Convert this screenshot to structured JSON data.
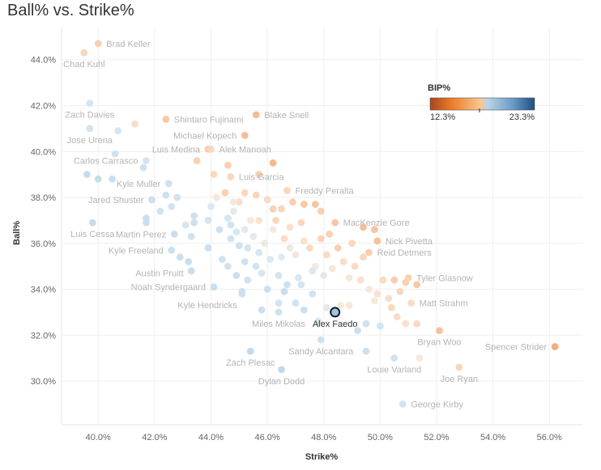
{
  "title": "Ball% vs. Strike%",
  "chart_data": {
    "type": "scatter",
    "title": "Ball% vs. Strike%",
    "xlabel": "Strike%",
    "ylabel": "Ball%",
    "xlim": [
      38.7,
      57.2
    ],
    "ylim": [
      28.1,
      45.4
    ],
    "xticks": [
      40,
      42,
      44,
      46,
      48,
      50,
      52,
      54,
      56
    ],
    "yticks": [
      30,
      32,
      34,
      36,
      38,
      40,
      42,
      44
    ],
    "xtick_labels": [
      "40.0%",
      "42.0%",
      "44.0%",
      "46.0%",
      "48.0%",
      "50.0%",
      "52.0%",
      "54.0%",
      "56.0%"
    ],
    "ytick_labels": [
      "30.0%",
      "32.0%",
      "34.0%",
      "36.0%",
      "38.0%",
      "40.0%",
      "42.0%",
      "44.0%"
    ],
    "grid": true,
    "legend": {
      "title": "BIP%",
      "min_label": "12.3%",
      "max_label": "23.3%",
      "min": 12.3,
      "max": 23.3,
      "mid": 17.5,
      "colors": [
        "#a8461e",
        "#eb7a28",
        "#fbc68d",
        "#b9d4e6",
        "#6f9dc9",
        "#1c4f80"
      ],
      "placement": "top-right"
    },
    "highlight_color": "#9ec6e2",
    "points": [
      {
        "name": "Brad Keller",
        "x": 40.0,
        "y": 44.7,
        "bip": 16.5,
        "label": "right"
      },
      {
        "name": "Chad Kuhl",
        "x": 39.5,
        "y": 44.3,
        "bip": 16.8,
        "label": "below"
      },
      {
        "name": "Zach Davies",
        "x": 39.7,
        "y": 42.1,
        "bip": 20.0,
        "label": "below"
      },
      {
        "name": "Shintaro Fujinami",
        "x": 42.4,
        "y": 41.4,
        "bip": 16.2,
        "label": "right"
      },
      {
        "name": "Blake Snell",
        "x": 45.6,
        "y": 41.6,
        "bip": 15.5,
        "label": "right"
      },
      {
        "name": "Michael Kopech",
        "x": 45.2,
        "y": 40.7,
        "bip": 15.6,
        "label": "left"
      },
      {
        "name": "Jose Urena",
        "x": 39.7,
        "y": 41.0,
        "bip": 20.0,
        "label": "below"
      },
      {
        "name": "Luis Medina",
        "x": 43.9,
        "y": 40.1,
        "bip": 16.4,
        "label": "left"
      },
      {
        "name": "Alek Manoah",
        "x": 44.0,
        "y": 40.1,
        "bip": 16.9,
        "label": "right"
      },
      {
        "name": "Carlos Carrasco",
        "x": 41.7,
        "y": 39.6,
        "bip": 19.9,
        "label": "left"
      },
      {
        "name": "Luis Garcia",
        "x": 44.7,
        "y": 38.9,
        "bip": 16.8,
        "label": "right"
      },
      {
        "name": "Kyle Muller",
        "x": 42.5,
        "y": 38.6,
        "bip": 20.3,
        "label": "left"
      },
      {
        "name": "Freddy Peralta",
        "x": 46.7,
        "y": 38.3,
        "bip": 16.8,
        "label": "right"
      },
      {
        "name": "Jared Shuster",
        "x": 41.9,
        "y": 37.9,
        "bip": 20.6,
        "label": "left"
      },
      {
        "name": "MacKenzie Gore",
        "x": 48.4,
        "y": 36.9,
        "bip": 16.0,
        "label": "right"
      },
      {
        "name": "Luis Cessa",
        "x": 39.8,
        "y": 36.9,
        "bip": 21.0,
        "label": "below"
      },
      {
        "name": "Martin Perez",
        "x": 42.7,
        "y": 36.4,
        "bip": 20.7,
        "label": "left"
      },
      {
        "name": "Nick Pivetta",
        "x": 49.9,
        "y": 36.1,
        "bip": 15.8,
        "label": "right"
      },
      {
        "name": "Kyle Freeland",
        "x": 42.6,
        "y": 35.7,
        "bip": 20.6,
        "label": "left"
      },
      {
        "name": "Reid Detmers",
        "x": 49.6,
        "y": 35.6,
        "bip": 16.4,
        "label": "right"
      },
      {
        "name": "Austin Pruitt",
        "x": 43.2,
        "y": 35.2,
        "bip": 20.8,
        "label": "below-left"
      },
      {
        "name": "Tyler Glasnow",
        "x": 51.0,
        "y": 34.5,
        "bip": 16.6,
        "label": "right"
      },
      {
        "name": "Noah Syndergaard",
        "x": 44.1,
        "y": 34.1,
        "bip": 20.7,
        "label": "left"
      },
      {
        "name": "Matt Strahm",
        "x": 51.1,
        "y": 33.4,
        "bip": 17.0,
        "label": "right"
      },
      {
        "name": "Kyle Hendricks",
        "x": 45.1,
        "y": 33.8,
        "bip": 20.4,
        "label": "below-left"
      },
      {
        "name": "Alex Faedo",
        "x": 48.4,
        "y": 33.0,
        "bip": 21.5,
        "label": "below",
        "highlight": true
      },
      {
        "name": "Miles Mikolas",
        "x": 46.4,
        "y": 33.0,
        "bip": 20.3,
        "label": "below"
      },
      {
        "name": "Bryan Woo",
        "x": 52.1,
        "y": 32.2,
        "bip": 15.8,
        "label": "below"
      },
      {
        "name": "Spencer Strider",
        "x": 56.2,
        "y": 31.5,
        "bip": 14.8,
        "label": "left"
      },
      {
        "name": "Sandy Alcantara",
        "x": 47.9,
        "y": 31.8,
        "bip": 20.3,
        "label": "below"
      },
      {
        "name": "Zach Plesac",
        "x": 45.4,
        "y": 31.3,
        "bip": 21.2,
        "label": "below"
      },
      {
        "name": "Louie Varland",
        "x": 50.5,
        "y": 31.0,
        "bip": 20.2,
        "label": "below"
      },
      {
        "name": "Joe Ryan",
        "x": 52.8,
        "y": 30.6,
        "bip": 16.8,
        "label": "below"
      },
      {
        "name": "Dylan Dodd",
        "x": 46.5,
        "y": 30.5,
        "bip": 21.4,
        "label": "below"
      },
      {
        "name": "George Kirby",
        "x": 50.8,
        "y": 29.0,
        "bip": 20.0,
        "label": "right"
      },
      {
        "x": 41.3,
        "y": 41.2,
        "bip": 17.2
      },
      {
        "x": 40.7,
        "y": 40.9,
        "bip": 19.8
      },
      {
        "x": 40.6,
        "y": 39.9,
        "bip": 20.2
      },
      {
        "x": 41.6,
        "y": 39.3,
        "bip": 20.4
      },
      {
        "x": 39.6,
        "y": 39.0,
        "bip": 21.0
      },
      {
        "x": 40.0,
        "y": 38.8,
        "bip": 20.9
      },
      {
        "x": 40.5,
        "y": 38.8,
        "bip": 20.7
      },
      {
        "x": 41.7,
        "y": 37.1,
        "bip": 20.5
      },
      {
        "x": 41.7,
        "y": 36.9,
        "bip": 20.7
      },
      {
        "x": 42.4,
        "y": 38.1,
        "bip": 20.5
      },
      {
        "x": 42.2,
        "y": 37.4,
        "bip": 20.2
      },
      {
        "x": 42.8,
        "y": 38.0,
        "bip": 20.1
      },
      {
        "x": 42.6,
        "y": 37.6,
        "bip": 20.0
      },
      {
        "x": 43.4,
        "y": 37.2,
        "bip": 20.3
      },
      {
        "x": 43.4,
        "y": 36.9,
        "bip": 20.5
      },
      {
        "x": 43.1,
        "y": 36.8,
        "bip": 19.8
      },
      {
        "x": 43.3,
        "y": 36.3,
        "bip": 20.1
      },
      {
        "x": 42.9,
        "y": 35.4,
        "bip": 20.4
      },
      {
        "x": 43.5,
        "y": 39.6,
        "bip": 16.6
      },
      {
        "x": 44.1,
        "y": 39.0,
        "bip": 16.9
      },
      {
        "x": 44.6,
        "y": 39.4,
        "bip": 16.5
      },
      {
        "x": 44.2,
        "y": 38.0,
        "bip": 17.6
      },
      {
        "x": 44.0,
        "y": 37.6,
        "bip": 19.4
      },
      {
        "x": 43.9,
        "y": 37.0,
        "bip": 19.9
      },
      {
        "x": 44.3,
        "y": 36.6,
        "bip": 20.4
      },
      {
        "x": 44.6,
        "y": 37.1,
        "bip": 19.8
      },
      {
        "x": 44.8,
        "y": 37.4,
        "bip": 18.7
      },
      {
        "x": 45.0,
        "y": 37.8,
        "bip": 17.3
      },
      {
        "x": 45.4,
        "y": 37.0,
        "bip": 17.8
      },
      {
        "x": 45.2,
        "y": 36.6,
        "bip": 19.3
      },
      {
        "x": 44.9,
        "y": 36.5,
        "bip": 19.6
      },
      {
        "x": 44.7,
        "y": 36.2,
        "bip": 20.1
      },
      {
        "x": 45.0,
        "y": 35.9,
        "bip": 20.3
      },
      {
        "x": 45.3,
        "y": 35.8,
        "bip": 19.8
      },
      {
        "x": 45.5,
        "y": 36.3,
        "bip": 18.9
      },
      {
        "x": 45.7,
        "y": 35.6,
        "bip": 19.8
      },
      {
        "x": 45.9,
        "y": 36.0,
        "bip": 18.4
      },
      {
        "x": 46.1,
        "y": 35.3,
        "bip": 19.5
      },
      {
        "x": 45.6,
        "y": 35.0,
        "bip": 20.0
      },
      {
        "x": 45.2,
        "y": 35.2,
        "bip": 20.3
      },
      {
        "x": 44.9,
        "y": 34.6,
        "bip": 20.6
      },
      {
        "x": 44.6,
        "y": 35.0,
        "bip": 20.1
      },
      {
        "x": 45.3,
        "y": 34.4,
        "bip": 20.2
      },
      {
        "x": 45.8,
        "y": 34.7,
        "bip": 19.7
      },
      {
        "x": 46.0,
        "y": 34.0,
        "bip": 20.4
      },
      {
        "x": 45.1,
        "y": 33.9,
        "bip": 20.5
      },
      {
        "x": 46.4,
        "y": 34.6,
        "bip": 19.9
      },
      {
        "x": 46.6,
        "y": 33.9,
        "bip": 20.8
      },
      {
        "x": 47.0,
        "y": 33.4,
        "bip": 20.1
      },
      {
        "x": 46.7,
        "y": 34.2,
        "bip": 20.3
      },
      {
        "x": 45.8,
        "y": 33.1,
        "bip": 20.6
      },
      {
        "x": 46.4,
        "y": 33.4,
        "bip": 20.0
      },
      {
        "x": 47.1,
        "y": 34.5,
        "bip": 19.6
      },
      {
        "x": 47.2,
        "y": 34.2,
        "bip": 20.0
      },
      {
        "x": 47.6,
        "y": 33.8,
        "bip": 20.1
      },
      {
        "x": 47.3,
        "y": 33.1,
        "bip": 20.6
      },
      {
        "x": 47.8,
        "y": 32.6,
        "bip": 19.9
      },
      {
        "x": 46.2,
        "y": 36.6,
        "bip": 17.8
      },
      {
        "x": 46.6,
        "y": 36.2,
        "bip": 17.2
      },
      {
        "x": 46.8,
        "y": 35.8,
        "bip": 18.4
      },
      {
        "x": 46.5,
        "y": 35.4,
        "bip": 19.2
      },
      {
        "x": 47.0,
        "y": 35.5,
        "bip": 18.2
      },
      {
        "x": 47.3,
        "y": 36.1,
        "bip": 17.4
      },
      {
        "x": 47.5,
        "y": 35.8,
        "bip": 17.0
      },
      {
        "x": 47.7,
        "y": 35.0,
        "bip": 18.0
      },
      {
        "x": 47.9,
        "y": 36.2,
        "bip": 16.7
      },
      {
        "x": 48.1,
        "y": 35.5,
        "bip": 17.0
      },
      {
        "x": 48.3,
        "y": 34.9,
        "bip": 17.6
      },
      {
        "x": 48.0,
        "y": 34.6,
        "bip": 18.9
      },
      {
        "x": 47.6,
        "y": 34.8,
        "bip": 19.4
      },
      {
        "x": 48.5,
        "y": 35.8,
        "bip": 16.5
      },
      {
        "x": 48.7,
        "y": 35.2,
        "bip": 17.1
      },
      {
        "x": 48.9,
        "y": 34.5,
        "bip": 17.8
      },
      {
        "x": 49.1,
        "y": 35.0,
        "bip": 17.0
      },
      {
        "x": 49.3,
        "y": 34.4,
        "bip": 17.3
      },
      {
        "x": 49.4,
        "y": 35.4,
        "bip": 16.8
      },
      {
        "x": 49.6,
        "y": 34.0,
        "bip": 17.6
      },
      {
        "x": 49.9,
        "y": 33.8,
        "bip": 17.4
      },
      {
        "x": 50.1,
        "y": 34.4,
        "bip": 17.0
      },
      {
        "x": 50.3,
        "y": 33.6,
        "bip": 17.2
      },
      {
        "x": 49.8,
        "y": 33.5,
        "bip": 17.8
      },
      {
        "x": 50.5,
        "y": 34.4,
        "bip": 16.4
      },
      {
        "x": 50.7,
        "y": 33.9,
        "bip": 16.8
      },
      {
        "x": 50.4,
        "y": 33.2,
        "bip": 16.9
      },
      {
        "x": 50.6,
        "y": 32.8,
        "bip": 17.2
      },
      {
        "x": 50.9,
        "y": 32.5,
        "bip": 17.4
      },
      {
        "x": 51.3,
        "y": 32.5,
        "bip": 17.0
      },
      {
        "x": 49.5,
        "y": 32.5,
        "bip": 20.2
      },
      {
        "x": 49.2,
        "y": 32.2,
        "bip": 20.6
      },
      {
        "x": 49.5,
        "y": 31.3,
        "bip": 20.4
      },
      {
        "x": 50.0,
        "y": 32.4,
        "bip": 20.0
      },
      {
        "x": 51.4,
        "y": 31.0,
        "bip": 17.8
      },
      {
        "x": 48.1,
        "y": 33.2,
        "bip": 18.8
      },
      {
        "x": 48.6,
        "y": 33.3,
        "bip": 18.0
      },
      {
        "x": 48.9,
        "y": 33.3,
        "bip": 17.6
      },
      {
        "x": 47.3,
        "y": 37.7,
        "bip": 16.2
      },
      {
        "x": 47.7,
        "y": 37.7,
        "bip": 16.0
      },
      {
        "x": 46.9,
        "y": 37.8,
        "bip": 16.5
      },
      {
        "x": 46.5,
        "y": 37.5,
        "bip": 16.8
      },
      {
        "x": 46.3,
        "y": 37.0,
        "bip": 16.9
      },
      {
        "x": 45.7,
        "y": 37.0,
        "bip": 17.4
      },
      {
        "x": 46.0,
        "y": 37.9,
        "bip": 17.0
      },
      {
        "x": 45.6,
        "y": 38.1,
        "bip": 16.8
      },
      {
        "x": 45.2,
        "y": 38.2,
        "bip": 16.9
      },
      {
        "x": 46.8,
        "y": 36.7,
        "bip": 17.3
      },
      {
        "x": 47.9,
        "y": 37.4,
        "bip": 16.5
      },
      {
        "x": 48.2,
        "y": 36.4,
        "bip": 16.6
      },
      {
        "x": 49.4,
        "y": 36.7,
        "bip": 15.7
      },
      {
        "x": 49.8,
        "y": 36.6,
        "bip": 15.9
      },
      {
        "x": 49.0,
        "y": 36.0,
        "bip": 16.9
      },
      {
        "x": 50.9,
        "y": 34.3,
        "bip": 16.6
      },
      {
        "x": 51.3,
        "y": 34.2,
        "bip": 16.2
      },
      {
        "x": 44.5,
        "y": 38.2,
        "bip": 16.5
      },
      {
        "x": 45.7,
        "y": 39.0,
        "bip": 16.4
      },
      {
        "x": 46.2,
        "y": 39.5,
        "bip": 15.3
      },
      {
        "x": 44.8,
        "y": 37.8,
        "bip": 18.0
      },
      {
        "x": 43.3,
        "y": 34.8,
        "bip": 20.9
      },
      {
        "x": 43.9,
        "y": 35.8,
        "bip": 20.4
      },
      {
        "x": 44.4,
        "y": 35.3,
        "bip": 20.2
      },
      {
        "x": 44.7,
        "y": 36.8,
        "bip": 20.0
      },
      {
        "x": 46.2,
        "y": 37.5,
        "bip": 16.6
      },
      {
        "x": 47.2,
        "y": 36.9,
        "bip": 16.8
      }
    ]
  }
}
